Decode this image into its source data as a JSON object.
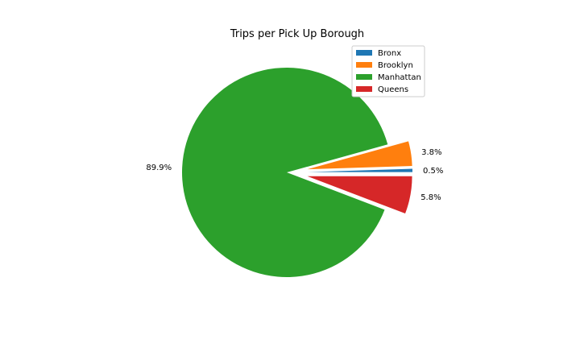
{
  "chart_data": {
    "type": "pie",
    "title": "Trips per Pick Up Borough",
    "legend": {
      "location": "upper-right"
    },
    "slices": [
      {
        "label": "Bronx",
        "value": 0.5,
        "pct_label": "0.5%",
        "color": "#1f77b4",
        "exploded": true
      },
      {
        "label": "Brooklyn",
        "value": 3.8,
        "pct_label": "3.8%",
        "color": "#ff7f0e",
        "exploded": true
      },
      {
        "label": "Manhattan",
        "value": 89.9,
        "pct_label": "89.9%",
        "color": "#2ca02c",
        "exploded": false
      },
      {
        "label": "Queens",
        "value": 5.8,
        "pct_label": "5.8%",
        "color": "#d62728",
        "exploded": true
      }
    ]
  }
}
